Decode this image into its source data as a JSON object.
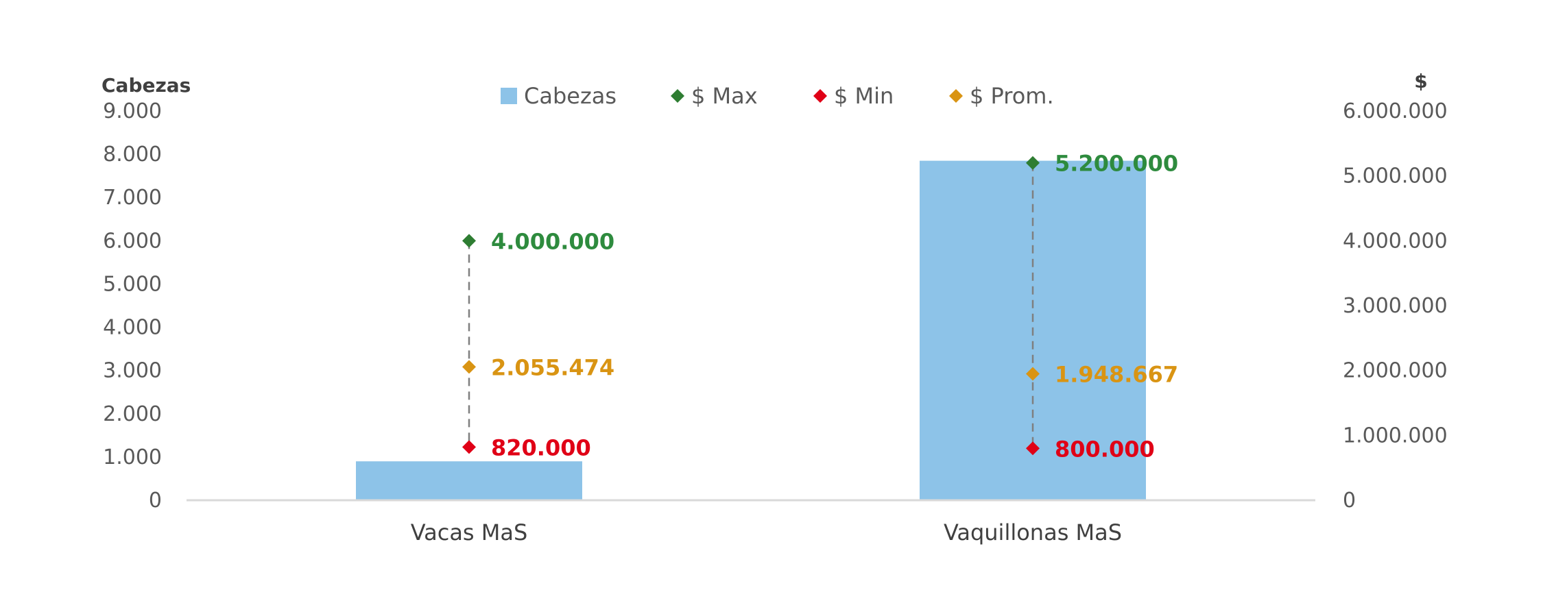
{
  "chart_data": {
    "type": "bar",
    "categories": [
      "Vacas MaS",
      "Vaquillonas MaS"
    ],
    "left_axis": {
      "title": "Cabezas",
      "ylim": [
        0,
        9000
      ],
      "ticks": [
        "0",
        "1.000",
        "2.000",
        "3.000",
        "4.000",
        "5.000",
        "6.000",
        "7.000",
        "8.000",
        "9.000"
      ]
    },
    "right_axis": {
      "title": "$",
      "ylim": [
        0,
        6000000
      ],
      "ticks": [
        "0",
        "1.000.000",
        "2.000.000",
        "3.000.000",
        "4.000.000",
        "5.000.000",
        "6.000.000"
      ]
    },
    "series": [
      {
        "name": "Cabezas",
        "kind": "bar",
        "axis": "left",
        "color": "#8DC3E8",
        "values": [
          900,
          7850
        ],
        "labels": [
          "",
          ""
        ]
      },
      {
        "name": "$ Max",
        "kind": "marker",
        "axis": "right",
        "color": "#2E7D32",
        "label_color": "#2E8B3E",
        "values": [
          4000000,
          5200000
        ],
        "labels": [
          "4.000.000",
          "5.200.000"
        ]
      },
      {
        "name": "$ Min",
        "kind": "marker",
        "axis": "right",
        "color": "#E00016",
        "label_color": "#E00016",
        "values": [
          820000,
          800000
        ],
        "labels": [
          "820.000",
          "800.000"
        ]
      },
      {
        "name": "$ Prom.",
        "kind": "marker",
        "axis": "right",
        "color": "#D99413",
        "label_color": "#D99413",
        "values": [
          2055474,
          1948667
        ],
        "labels": [
          "2.055.474",
          "1.948.667"
        ]
      }
    ],
    "grid": false,
    "legend_position": "top",
    "colors": {
      "axis_line": "#D9D9D9",
      "connector": "#7F7F7F",
      "tick_text": "#595959"
    }
  }
}
